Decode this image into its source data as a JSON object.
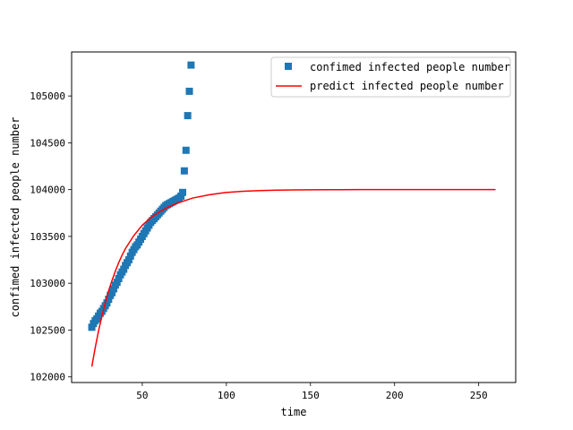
{
  "chart_data": {
    "type": "scatter+line",
    "title": "",
    "xlabel": "time",
    "ylabel": "confimed infected people number",
    "xlim": [
      8,
      272
    ],
    "ylim": [
      101940,
      105470
    ],
    "xticks": [
      50,
      100,
      150,
      200,
      250
    ],
    "yticks": [
      102000,
      102500,
      103000,
      103500,
      104000,
      104500,
      105000
    ],
    "grid": false,
    "legend_position": "upper right",
    "series": [
      {
        "name": "confimed infected people number",
        "type": "scatter",
        "marker": "square",
        "color": "#1f77b4",
        "x": [
          20,
          21,
          22,
          23,
          24,
          25,
          26,
          27,
          28,
          29,
          30,
          31,
          32,
          33,
          34,
          35,
          36,
          37,
          38,
          39,
          40,
          41,
          42,
          43,
          44,
          45,
          46,
          47,
          48,
          49,
          50,
          51,
          52,
          53,
          54,
          55,
          56,
          57,
          58,
          59,
          60,
          61,
          62,
          63,
          64,
          65,
          66,
          67,
          68,
          69,
          70,
          71,
          72,
          73,
          74,
          75,
          76,
          77,
          78,
          79
        ],
        "y": [
          102530,
          102570,
          102600,
          102620,
          102650,
          102680,
          102700,
          102730,
          102760,
          102790,
          102830,
          102870,
          102900,
          102940,
          102980,
          103010,
          103050,
          103090,
          103120,
          103150,
          103190,
          103220,
          103250,
          103290,
          103330,
          103360,
          103390,
          103410,
          103440,
          103470,
          103500,
          103530,
          103560,
          103590,
          103620,
          103650,
          103670,
          103690,
          103710,
          103730,
          103750,
          103770,
          103790,
          103810,
          103830,
          103840,
          103850,
          103860,
          103870,
          103880,
          103890,
          103900,
          103910,
          103930,
          103970,
          104200,
          104420,
          104790,
          105050,
          105330
        ]
      },
      {
        "name": "predict infected people number",
        "type": "line",
        "color": "#ff0000",
        "x": [
          20,
          22,
          24,
          26,
          28,
          30,
          32,
          34,
          36,
          38,
          40,
          45,
          50,
          55,
          60,
          65,
          70,
          75,
          80,
          90,
          100,
          110,
          120,
          130,
          140,
          150,
          160,
          180,
          200,
          220,
          240,
          260
        ],
        "y": [
          102110,
          102310,
          102490,
          102650,
          102790,
          102920,
          103030,
          103130,
          103220,
          103300,
          103370,
          103510,
          103620,
          103700,
          103760,
          103810,
          103850,
          103880,
          103910,
          103945,
          103970,
          103983,
          103990,
          103995,
          103997,
          103998,
          103999,
          104000,
          104000,
          104000,
          104000,
          104000
        ]
      }
    ]
  }
}
